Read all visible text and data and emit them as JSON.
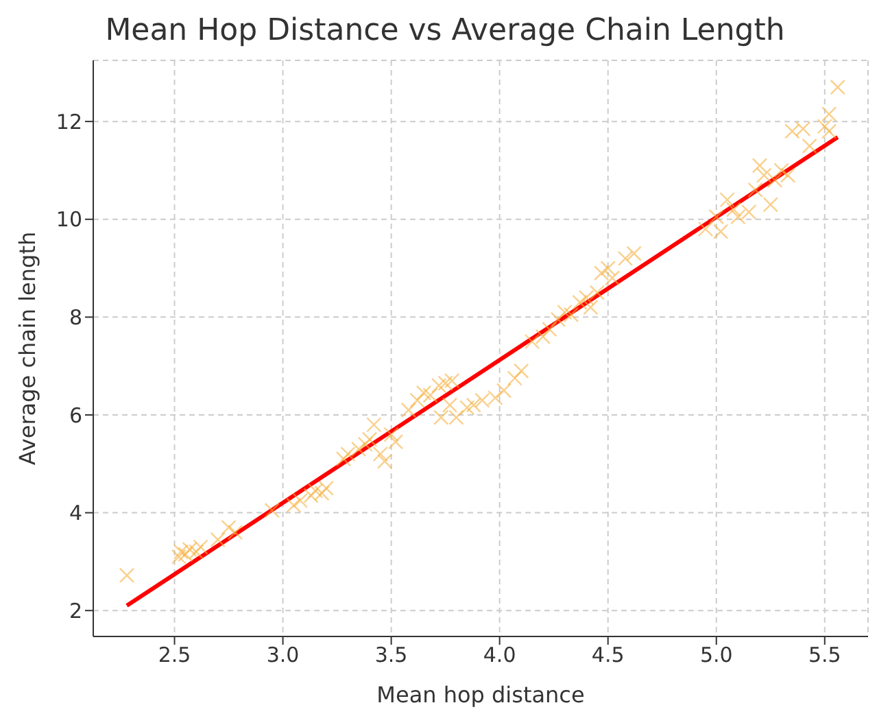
{
  "chart_data": {
    "type": "scatter",
    "title": "Mean Hop Distance vs Average Chain Length",
    "xlabel": "Mean hop distance",
    "ylabel": "Average chain length",
    "xlim": [
      2.125,
      5.7
    ],
    "ylim": [
      1.47,
      13.25
    ],
    "xticks": [
      2.5,
      {
        "value": 3,
        "label": "3.0"
      },
      3.5,
      {
        "value": 4,
        "label": "4.0"
      },
      4.5,
      {
        "value": 5,
        "label": "5.0"
      },
      5.5
    ],
    "yticks": [
      2,
      4,
      6,
      8,
      10,
      12
    ],
    "grid": true,
    "series": [
      {
        "marker": "cross",
        "color": "#f5b041",
        "x": [
          2.28,
          2.52,
          2.53,
          2.55,
          2.57,
          2.6,
          2.62,
          2.7,
          2.75,
          2.78,
          2.95,
          3.05,
          3.08,
          3.13,
          3.15,
          3.18,
          3.2,
          3.28,
          3.3,
          3.35,
          3.38,
          3.4,
          3.42,
          3.45,
          3.47,
          3.5,
          3.52,
          3.58,
          3.62,
          3.65,
          3.68,
          3.72,
          3.75,
          3.78,
          3.73,
          3.77,
          3.8,
          3.85,
          3.88,
          3.92,
          3.98,
          4.02,
          4.07,
          4.1,
          4.15,
          4.2,
          4.23,
          4.27,
          4.3,
          4.33,
          4.37,
          4.4,
          4.42,
          4.45,
          4.47,
          4.5,
          4.52,
          4.58,
          4.62,
          4.95,
          5.0,
          5.02,
          5.05,
          5.08,
          5.1,
          5.15,
          5.18,
          5.2,
          5.22,
          5.25,
          5.27,
          5.3,
          5.33,
          5.35,
          5.4,
          5.43,
          5.5,
          5.52,
          5.52,
          5.56
        ],
        "values": [
          2.72,
          3.1,
          3.2,
          3.15,
          3.25,
          3.2,
          3.3,
          3.45,
          3.7,
          3.6,
          4.05,
          4.15,
          4.25,
          4.35,
          4.45,
          4.4,
          4.5,
          5.1,
          5.2,
          5.3,
          5.4,
          5.5,
          5.8,
          5.2,
          5.05,
          5.6,
          5.45,
          6.1,
          6.3,
          6.45,
          6.4,
          6.6,
          6.65,
          6.7,
          5.95,
          6.2,
          5.95,
          6.15,
          6.2,
          6.3,
          6.35,
          6.5,
          6.75,
          6.9,
          7.5,
          7.6,
          7.75,
          7.95,
          8.1,
          8.05,
          8.3,
          8.4,
          8.2,
          8.5,
          8.9,
          9.0,
          8.8,
          9.2,
          9.3,
          9.8,
          10.05,
          9.75,
          10.4,
          10.2,
          10.05,
          10.15,
          10.6,
          11.1,
          10.9,
          10.3,
          10.8,
          11.0,
          10.9,
          11.8,
          11.85,
          11.5,
          11.9,
          12.15,
          11.8,
          12.7
        ]
      },
      {
        "type": "line",
        "marker": "none",
        "color": "#ff0000",
        "x": [
          2.28,
          5.56
        ],
        "values": [
          2.1,
          11.68
        ]
      }
    ]
  }
}
